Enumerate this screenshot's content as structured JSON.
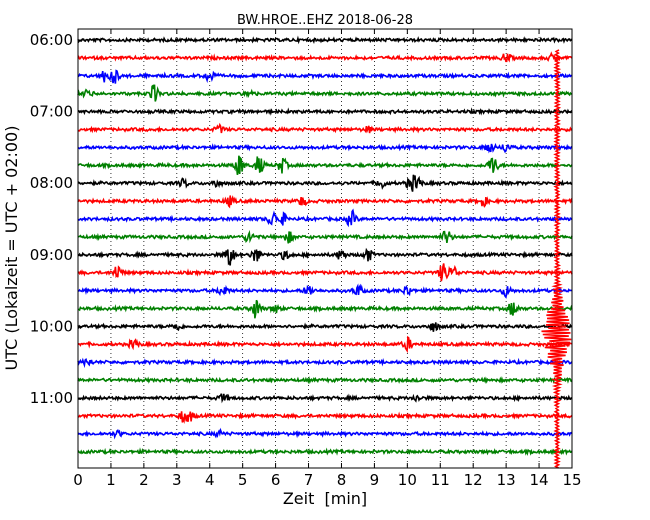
{
  "chart_data": {
    "type": "line",
    "title": "BW.HROE..EHZ 2018-06-28",
    "xlabel": "Zeit  [min]",
    "ylabel": "UTC (Lokalzeit = UTC + 02:00)",
    "xlim": [
      0,
      15
    ],
    "x_ticks": [
      "0",
      "1",
      "2",
      "3",
      "4",
      "5",
      "6",
      "7",
      "8",
      "9",
      "10",
      "11",
      "12",
      "13",
      "14",
      "15"
    ],
    "y_ticks": [
      "06:00",
      "07:00",
      "08:00",
      "09:00",
      "10:00",
      "11:00"
    ],
    "grid": "vertical dotted",
    "trace_interval_min": 15,
    "colors": [
      "#000000",
      "#ff0000",
      "#0000ff",
      "#008000"
    ],
    "rows": [
      {
        "start": "06:00",
        "color": "#000000",
        "events": []
      },
      {
        "start": "06:15",
        "color": "#ff0000",
        "events": [
          [
            13.0,
            0.5
          ],
          [
            14.4,
            0.35
          ]
        ]
      },
      {
        "start": "06:30",
        "color": "#0000ff",
        "events": [
          [
            0.8,
            0.6
          ],
          [
            1.1,
            0.8
          ],
          [
            4.0,
            0.7
          ]
        ]
      },
      {
        "start": "06:45",
        "color": "#008000",
        "events": [
          [
            0.3,
            0.4
          ],
          [
            2.3,
            0.9
          ],
          [
            5.2,
            0.3
          ]
        ]
      },
      {
        "start": "07:00",
        "color": "#000000",
        "events": []
      },
      {
        "start": "07:15",
        "color": "#ff0000",
        "events": [
          [
            4.3,
            0.4
          ],
          [
            8.8,
            0.3
          ]
        ]
      },
      {
        "start": "07:30",
        "color": "#0000ff",
        "events": [
          [
            12.5,
            0.6
          ],
          [
            13.0,
            0.5
          ]
        ]
      },
      {
        "start": "07:45",
        "color": "#008000",
        "events": [
          [
            4.9,
            1.2
          ],
          [
            5.5,
            1.0
          ],
          [
            6.2,
            0.8
          ],
          [
            12.6,
            1.1
          ]
        ]
      },
      {
        "start": "08:00",
        "color": "#000000",
        "events": [
          [
            3.2,
            0.4
          ],
          [
            4.2,
            0.4
          ],
          [
            9.2,
            0.5
          ],
          [
            10.1,
            0.7
          ],
          [
            10.3,
            0.7
          ]
        ]
      },
      {
        "start": "08:15",
        "color": "#ff0000",
        "events": [
          [
            4.6,
            0.5
          ],
          [
            6.8,
            0.5
          ],
          [
            12.3,
            0.5
          ]
        ]
      },
      {
        "start": "08:30",
        "color": "#0000ff",
        "events": [
          [
            5.9,
            0.8
          ],
          [
            6.2,
            0.6
          ],
          [
            8.3,
            0.9
          ]
        ]
      },
      {
        "start": "08:45",
        "color": "#008000",
        "events": [
          [
            5.2,
            0.6
          ],
          [
            6.4,
            0.6
          ],
          [
            11.2,
            0.8
          ]
        ]
      },
      {
        "start": "09:00",
        "color": "#000000",
        "events": [
          [
            4.6,
            1.3
          ],
          [
            5.4,
            0.8
          ],
          [
            6.3,
            0.5
          ],
          [
            8.0,
            0.6
          ],
          [
            8.8,
            0.7
          ]
        ]
      },
      {
        "start": "09:15",
        "color": "#ff0000",
        "events": [
          [
            1.2,
            0.8
          ],
          [
            11.1,
            1.1
          ],
          [
            11.4,
            0.6
          ]
        ]
      },
      {
        "start": "09:30",
        "color": "#0000ff",
        "events": [
          [
            4.4,
            0.6
          ],
          [
            7.0,
            0.6
          ],
          [
            8.5,
            0.6
          ],
          [
            10.0,
            0.5
          ],
          [
            13.0,
            0.6
          ]
        ]
      },
      {
        "start": "09:45",
        "color": "#008000",
        "events": [
          [
            5.4,
            1.1
          ],
          [
            6.0,
            0.4
          ],
          [
            13.2,
            0.8
          ]
        ]
      },
      {
        "start": "10:00",
        "color": "#000000",
        "events": [
          [
            3.0,
            0.4
          ],
          [
            10.8,
            0.5
          ]
        ]
      },
      {
        "start": "10:15",
        "color": "#ff0000",
        "events": [
          [
            1.7,
            0.5
          ],
          [
            10.0,
            0.7
          ]
        ]
      },
      {
        "start": "10:30",
        "color": "#0000ff",
        "events": [
          [
            0.3,
            0.4
          ]
        ]
      },
      {
        "start": "10:45",
        "color": "#008000",
        "events": []
      },
      {
        "start": "11:00",
        "color": "#000000",
        "events": [
          [
            4.4,
            0.4
          ],
          [
            10.3,
            0.3
          ]
        ]
      },
      {
        "start": "11:15",
        "color": "#ff0000",
        "events": [
          [
            3.2,
            0.6
          ],
          [
            3.4,
            0.5
          ]
        ]
      },
      {
        "start": "11:30",
        "color": "#0000ff",
        "events": [
          [
            1.2,
            0.3
          ],
          [
            4.3,
            0.3
          ]
        ]
      },
      {
        "start": "11:45",
        "color": "#008000",
        "events": []
      }
    ],
    "big_event": {
      "x": 14.55,
      "color": "#ff0000",
      "start_row": 1,
      "peak_row": 17
    }
  }
}
